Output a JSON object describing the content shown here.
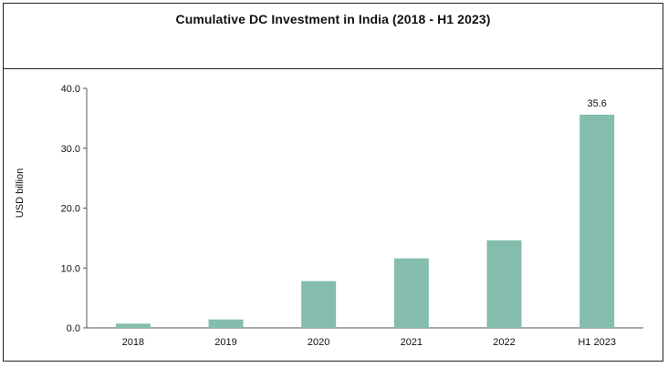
{
  "chart_data": {
    "type": "bar",
    "title": "Cumulative DC Investment in India (2018 - H1 2023)",
    "ylabel": "USD billion",
    "xlabel": "",
    "categories": [
      "2018",
      "2019",
      "2020",
      "2021",
      "2022",
      "H1 2023"
    ],
    "values": [
      0.7,
      1.4,
      7.8,
      11.6,
      14.6,
      35.6
    ],
    "data_labels": [
      null,
      null,
      null,
      null,
      null,
      "35.6"
    ],
    "ylim": [
      0,
      40
    ],
    "yticks": [
      "0.0",
      "10.0",
      "20.0",
      "30.0",
      "40.0"
    ],
    "grid": false,
    "legend": "none",
    "bar_color": "#84BDAE"
  }
}
